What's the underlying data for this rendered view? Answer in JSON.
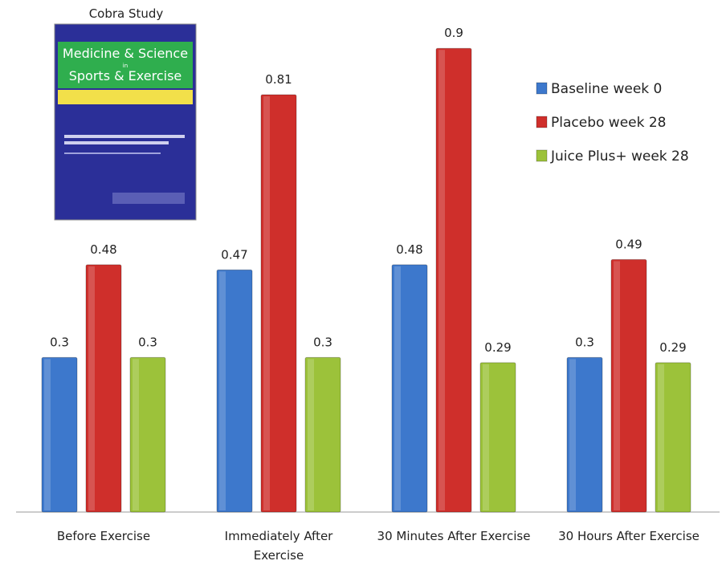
{
  "chart_data": {
    "type": "bar",
    "image_caption": "Cobra Study",
    "cover": {
      "line1": "Medicine & Science",
      "line2": "in",
      "line3": "Sports & Exercise"
    },
    "categories": [
      "Before Exercise",
      "Immediately After Exercise",
      "30 Minutes After Exercise",
      "30 Hours After Exercise"
    ],
    "series": [
      {
        "name": "Baseline week 0",
        "color": "#3d78cc",
        "values": [
          0.3,
          0.47,
          0.48,
          0.3
        ]
      },
      {
        "name": "Placebo week 28",
        "color": "#cf2f2b",
        "values": [
          0.48,
          0.81,
          0.9,
          0.49
        ]
      },
      {
        "name": "Juice Plus+ week 28",
        "color": "#9cc23a",
        "values": [
          0.3,
          0.3,
          0.29,
          0.29
        ]
      }
    ],
    "legend": "upper right"
  }
}
